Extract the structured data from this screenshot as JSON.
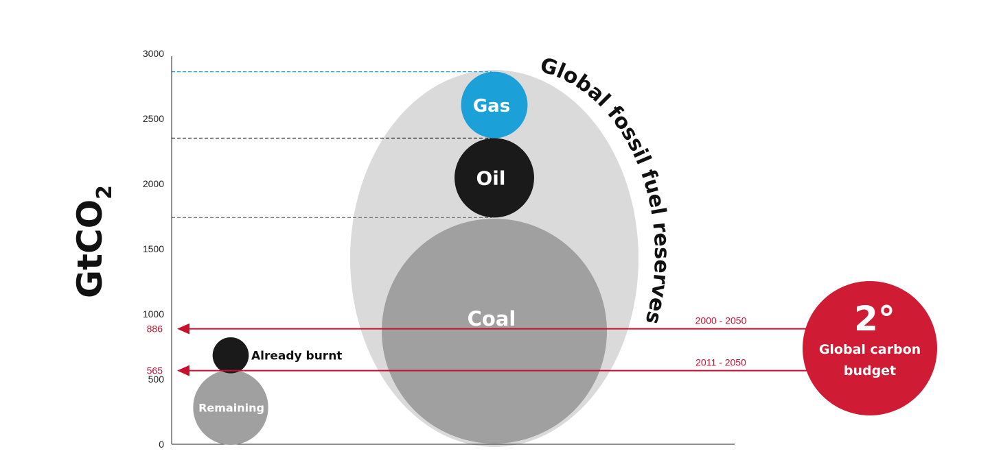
{
  "chart_data": {
    "type": "bubble",
    "ylabel": "GtCO",
    "ylabel_subscript": "2",
    "ylim": [
      0,
      3000
    ],
    "yticks": [
      0,
      500,
      1000,
      1500,
      2000,
      2500,
      3000
    ],
    "yticks_labels": [
      "0",
      "500",
      "1000",
      "1500",
      "2000",
      "2500",
      "3000"
    ],
    "highlighted_ticks": [
      {
        "value": 565,
        "label": "565"
      },
      {
        "value": 886,
        "label": "886"
      }
    ],
    "reserves_label": "Global fossil fuel reserves",
    "reserves": [
      {
        "name": "Coal",
        "from": 0,
        "to": 1740,
        "color": "#a0a0a0"
      },
      {
        "name": "Oil",
        "from": 1740,
        "to": 2350,
        "color": "#1a1a1a"
      },
      {
        "name": "Gas",
        "from": 2350,
        "to": 2860,
        "color": "#1ba1d8"
      }
    ],
    "reserve_reference_lines": [
      {
        "value": 1740,
        "color": "#777777"
      },
      {
        "value": 2350,
        "color": "#222222"
      },
      {
        "value": 2860,
        "color": "#1ba1d8"
      }
    ],
    "budget_split": [
      {
        "name": "Remaining",
        "from": 0,
        "to": 565,
        "color": "#a0a0a0"
      },
      {
        "name": "Already burnt",
        "from": 565,
        "to": 800,
        "color": "#1a1a1a"
      }
    ],
    "budget_arrows": [
      {
        "value": 886,
        "label": "2000 - 2050"
      },
      {
        "value": 565,
        "label": "2011 - 2050"
      }
    ],
    "budget_badge": {
      "title": "2°",
      "subtitle_line1": "Global carbon",
      "subtitle_line2": "budget",
      "color": "#cf1b33"
    }
  }
}
